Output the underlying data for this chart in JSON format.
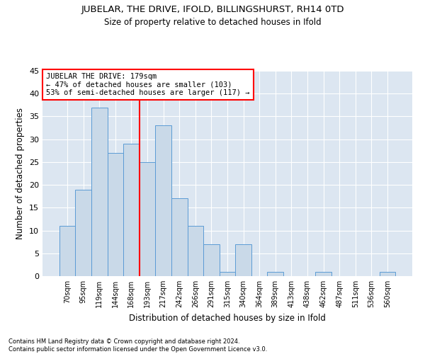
{
  "title": "JUBELAR, THE DRIVE, IFOLD, BILLINGSHURST, RH14 0TD",
  "subtitle": "Size of property relative to detached houses in Ifold",
  "xlabel": "Distribution of detached houses by size in Ifold",
  "ylabel": "Number of detached properties",
  "footnote": "Contains HM Land Registry data © Crown copyright and database right 2024.\nContains public sector information licensed under the Open Government Licence v3.0.",
  "categories": [
    "70sqm",
    "95sqm",
    "119sqm",
    "144sqm",
    "168sqm",
    "193sqm",
    "217sqm",
    "242sqm",
    "266sqm",
    "291sqm",
    "315sqm",
    "340sqm",
    "364sqm",
    "389sqm",
    "413sqm",
    "438sqm",
    "462sqm",
    "487sqm",
    "511sqm",
    "536sqm",
    "560sqm"
  ],
  "values": [
    11,
    19,
    37,
    27,
    29,
    25,
    33,
    17,
    11,
    7,
    1,
    7,
    0,
    1,
    0,
    0,
    1,
    0,
    0,
    0,
    1
  ],
  "bar_color": "#c9d9e8",
  "bar_edge_color": "#5b9bd5",
  "grid_color": "#d0dce8",
  "bg_color": "#dce6f1",
  "annotation_text": "JUBELAR THE DRIVE: 179sqm\n← 47% of detached houses are smaller (103)\n53% of semi-detached houses are larger (117) →",
  "ylim": [
    0,
    45
  ],
  "yticks": [
    0,
    5,
    10,
    15,
    20,
    25,
    30,
    35,
    40,
    45
  ],
  "red_line_bin": 4.5,
  "title_fontsize": 9.5,
  "subtitle_fontsize": 8.5,
  "footnote_fontsize": 6.0
}
